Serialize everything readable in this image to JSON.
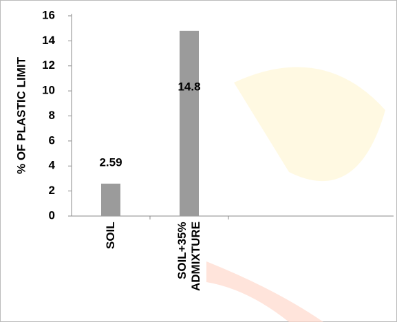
{
  "chart_data": {
    "type": "bar",
    "y_label": "% OF PLASTIC LIMIT",
    "categories": [
      "SOIL",
      "SOIL+35% ADMIXTURE"
    ],
    "values": [
      2.59,
      14.8
    ],
    "color": "#9b9b9b",
    "ylim": [
      0,
      16
    ],
    "yticks": [
      0,
      2,
      4,
      6,
      8,
      10,
      12,
      14,
      16
    ]
  }
}
